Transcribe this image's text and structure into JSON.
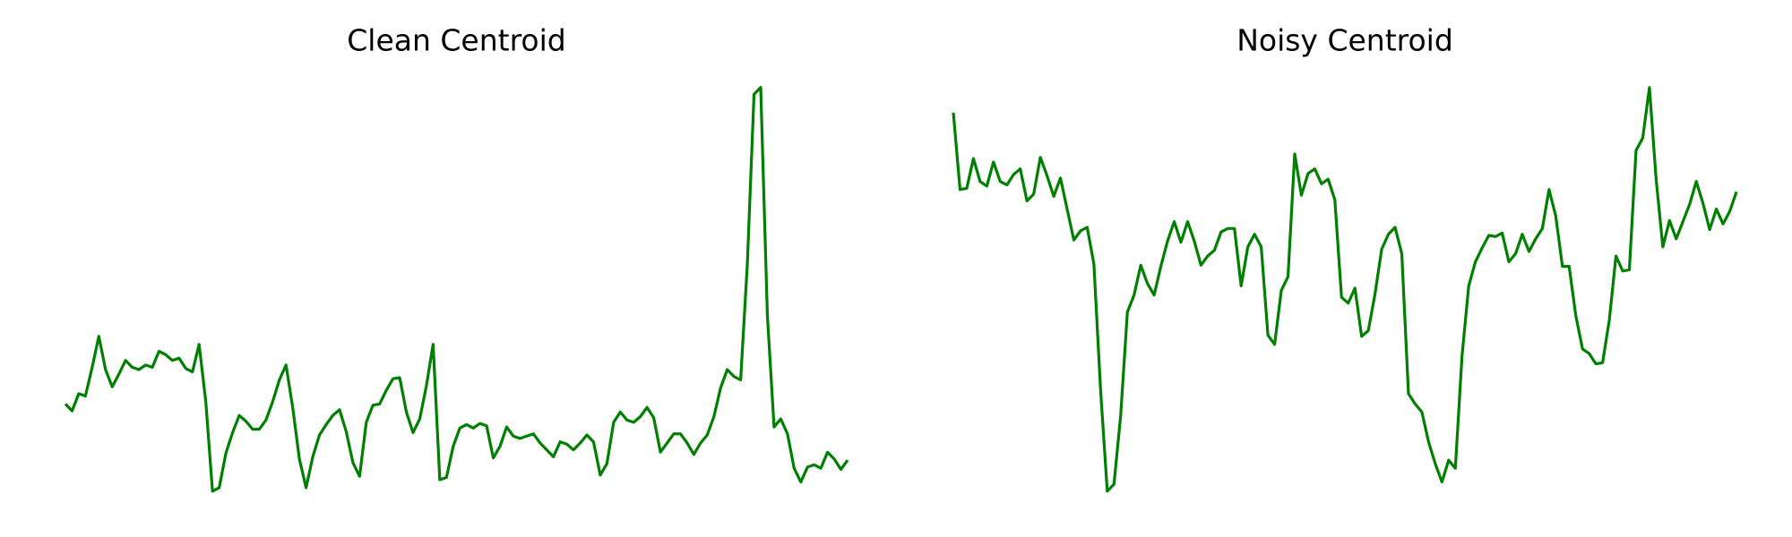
{
  "chart_data": [
    {
      "type": "line",
      "title": "Clean Centroid",
      "color": "#008000",
      "ylim": [
        0,
        380
      ],
      "values": [
        98,
        92,
        107,
        105,
        130,
        157,
        128,
        113,
        124,
        136,
        130,
        128,
        132,
        130,
        144,
        141,
        136,
        138,
        129,
        126,
        150,
        100,
        22,
        25,
        55,
        73,
        88,
        83,
        76,
        76,
        84,
        100,
        119,
        132,
        95,
        50,
        25,
        52,
        71,
        80,
        88,
        93,
        74,
        47,
        35,
        82,
        97,
        98,
        110,
        120,
        121,
        91,
        73,
        85,
        114,
        150,
        32,
        34,
        61,
        77,
        80,
        77,
        81,
        79,
        51,
        61,
        78,
        70,
        68,
        70,
        72,
        64,
        58,
        52,
        65,
        63,
        58,
        64,
        71,
        65,
        36,
        46,
        82,
        91,
        84,
        82,
        87,
        95,
        86,
        56,
        64,
        72,
        72,
        64,
        54,
        64,
        71,
        87,
        112,
        128,
        122,
        119,
        220,
        368,
        374,
        175,
        78,
        85,
        72,
        42,
        30,
        43,
        45,
        42,
        56,
        50,
        41,
        49
      ]
    },
    {
      "type": "line",
      "title": "Noisy Centroid",
      "color": "#008000",
      "ylim": [
        0,
        380
      ],
      "values": [
        352,
        285,
        286,
        312,
        292,
        288,
        309,
        292,
        289,
        298,
        303,
        275,
        281,
        313,
        297,
        279,
        295,
        268,
        241,
        249,
        252,
        220,
        110,
        22,
        28,
        88,
        178,
        193,
        219,
        203,
        193,
        218,
        240,
        257,
        239,
        257,
        240,
        219,
        227,
        232,
        248,
        251,
        251,
        201,
        235,
        246,
        235,
        158,
        150,
        197,
        209,
        316,
        280,
        299,
        303,
        290,
        294,
        276,
        191,
        186,
        199,
        157,
        162,
        194,
        233,
        246,
        252,
        229,
        107,
        98,
        91,
        65,
        46,
        30,
        49,
        42,
        140,
        201,
        222,
        234,
        245,
        244,
        247,
        222,
        229,
        246,
        231,
        242,
        251,
        285,
        262,
        218,
        218,
        175,
        146,
        142,
        133,
        134,
        171,
        227,
        214,
        215,
        319,
        330,
        374,
        294,
        235,
        258,
        242,
        257,
        272,
        292,
        273,
        250,
        268,
        255,
        266,
        283
      ]
    }
  ]
}
